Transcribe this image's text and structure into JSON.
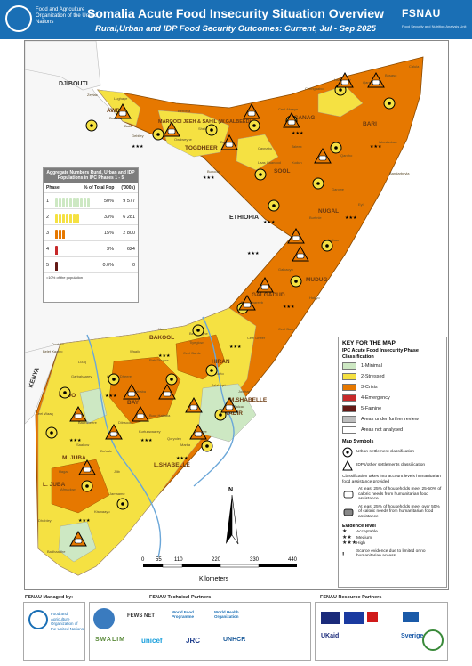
{
  "header": {
    "title": "Somalia Acute Food Insecurity Situation Overview",
    "subtitle": "Rural,Urban and IDP Food Security Outcomes: Current, Jul - Sep 2025",
    "fao_text": "Food and Agriculture Organization of the United Nations",
    "fsnau_logo": "FSNAU",
    "fsnau_sub": "Food Security and Nutrition Analysis Unit"
  },
  "map": {
    "countries": [
      "DJIBOUTI",
      "ETHIOPIA",
      "KENYA"
    ],
    "regions": [
      "AWDAL",
      "MAROODI JEEH & SAHIL (W.GALBEED)",
      "TOGDHEER",
      "SANAG",
      "SOOL",
      "BARI",
      "NUGAL",
      "MUDUG",
      "GALGADUD",
      "HIRAN",
      "BAKOOL",
      "GEDO",
      "BAY",
      "M.SHABELLE",
      "BANADIR",
      "L.SHABELLE",
      "M. JUBA",
      "L. JUBA"
    ],
    "districts": [
      "Zeylac",
      "Lughaye",
      "Borama",
      "Baki",
      "Gebiley",
      "Berbera",
      "Sheikh",
      "Burco",
      "Owdweyne",
      "Buhodle",
      "Ceerigaabo",
      "Laasqoray",
      "Ceel Afweyn",
      "Caynabo",
      "Laas Caanood",
      "Taleex",
      "Xudun",
      "Qandala",
      "Bosaso",
      "Iskushuban",
      "Qardho",
      "Calula",
      "Bandarbeyla",
      "Garowe",
      "Eyl",
      "Burtinle",
      "Galkacyo",
      "Jariban",
      "Hobyo",
      "Dhusamareeb",
      "Ceel Buur",
      "Ceel Dheer",
      "Beletweyne",
      "Bulo Burto",
      "Jalalaqsi",
      "Jowhar",
      "Balcad",
      "Ceel Barde",
      "Rab Dhuure",
      "Waajid",
      "Xudur",
      "Tiyeglow",
      "Luuq",
      "Belet Xaawo",
      "Doolow",
      "Garbahaarey",
      "Ceel Waaq",
      "Baardheere",
      "Baydhaba",
      "Buur Hakaba",
      "Qansax Dheere",
      "Diinsoor",
      "Afgooye",
      "Marka",
      "Qoryoley",
      "Kurtunwaarey",
      "Saakow",
      "Bu'aale",
      "Jilib",
      "Jamaame",
      "Afmadow",
      "Kismaayo",
      "Hagar",
      "Dhobley",
      "Badhaadhe"
    ],
    "compass": "N",
    "scale_ticks": [
      "0",
      "55",
      "110",
      "220",
      "330",
      "440"
    ],
    "scale_unit": "Kilometers"
  },
  "aggregate": {
    "title": "Aggregate Numbers Rural, Urban and IDP Populations in IPC Phases 1 - 5",
    "col_phase": "Phase",
    "col_pct": "% of Total Pop",
    "col_pop": "('000s)",
    "rows": [
      {
        "phase": "1",
        "pct": "50%",
        "pop": "9 577",
        "color": "#cde8c3"
      },
      {
        "phase": "2",
        "pct": "33%",
        "pop": "6 281",
        "color": "#f5e142"
      },
      {
        "phase": "3",
        "pct": "15%",
        "pop": "2 800",
        "color": "#e67800"
      },
      {
        "phase": "4",
        "pct": "3%",
        "pop": "624",
        "color": "#c7292a"
      },
      {
        "phase": "5",
        "pct": "0.0%",
        "pop": "0",
        "color": "#641915"
      }
    ],
    "footnote": "=10% of the population"
  },
  "key": {
    "title": "KEY FOR THE MAP",
    "subtitle": "IPC Acute Food Insecurity Phase Classification",
    "phases": [
      {
        "label": "1-Minimal",
        "color": "#cde8c3"
      },
      {
        "label": "2-Stressed",
        "color": "#f5e142"
      },
      {
        "label": "3-Crisis",
        "color": "#e67800"
      },
      {
        "label": "4-Emergency",
        "color": "#c7292a"
      },
      {
        "label": "5-Famine",
        "color": "#641915"
      },
      {
        "label": "Areas under further review",
        "color": "#bdbdbd"
      },
      {
        "label": "Areas not analysed",
        "color": "#ffffff"
      }
    ],
    "map_symbols_title": "Map Symbols",
    "urban": "Urban settlement classification",
    "idp": "IDPs/other settlements classification",
    "classification_note": "Classification takes into account levels humanitarian food assistance provided",
    "assist1": "At least 25% of households meet 25-50% of caloric needs from humanitarian food assistance",
    "assist2": "At least 25% of households meet over 50% of caloric needs from humanitarian food assistance",
    "evidence_title": "Evidence level",
    "evidence": [
      "Acceptable",
      "Medium",
      "High"
    ],
    "scarce": "Scarce evidence due to limited or no humanitarian access"
  },
  "footer": {
    "managed_by": "FSNAU Managed by:",
    "technical": "FSNAU Technical Partners",
    "resource": "FSNAU Resource Partners",
    "logos": [
      "FEWS NET",
      "World Food Programme",
      "World Health Organization",
      "SWALIM",
      "unicef",
      "JRC",
      "UNHCR",
      "UKaid",
      "Sverige"
    ]
  }
}
